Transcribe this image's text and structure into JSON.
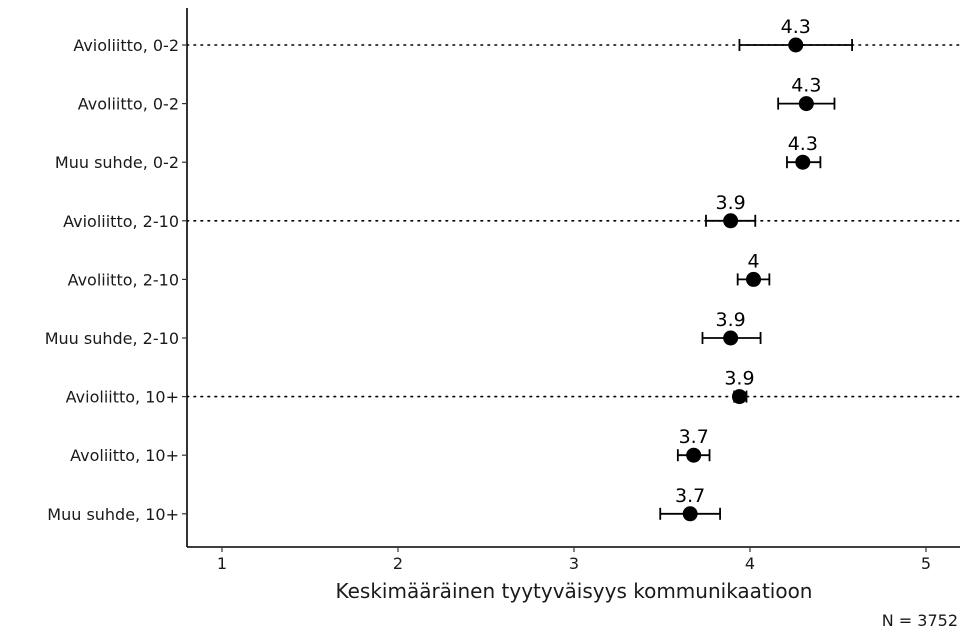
{
  "chart_data": {
    "type": "scatter",
    "orientation": "horizontal",
    "categories": [
      "Avioliitto, 0-2",
      "Avoliitto, 0-2",
      "Muu suhde, 0-2",
      "Avioliitto, 2-10",
      "Avoliitto, 2-10",
      "Muu suhde, 2-10",
      "Avioliitto, 10+",
      "Avoliitto, 10+",
      "Muu suhde, 10+"
    ],
    "values": [
      4.26,
      4.32,
      4.3,
      3.89,
      4.02,
      3.89,
      3.94,
      3.68,
      3.66
    ],
    "value_labels": [
      "4.3",
      "4.3",
      "4.3",
      "3.9",
      "4",
      "3.9",
      "3.9",
      "3.7",
      "3.7"
    ],
    "error_low": [
      3.94,
      4.16,
      4.21,
      3.75,
      3.93,
      3.73,
      3.91,
      3.59,
      3.49
    ],
    "error_high": [
      4.58,
      4.48,
      4.4,
      4.03,
      4.11,
      4.06,
      3.98,
      3.77,
      3.83
    ],
    "dotted_reference_rows": [
      "Avioliitto, 0-2",
      "Avioliitto, 2-10",
      "Avioliitto, 10+"
    ],
    "xlabel": "Keskimääräinen tyytyväisyys kommunikaatioon",
    "xticks": [
      1,
      2,
      3,
      4,
      5
    ],
    "xtick_labels": [
      "1",
      "2",
      "3",
      "4",
      "5"
    ],
    "xlim": [
      0.8,
      5.2
    ],
    "caption": "N = 3752",
    "grid": false,
    "legend": "none",
    "colors": {
      "point": "#000000",
      "axis": "#000000",
      "text": "#1a1a1a"
    }
  }
}
